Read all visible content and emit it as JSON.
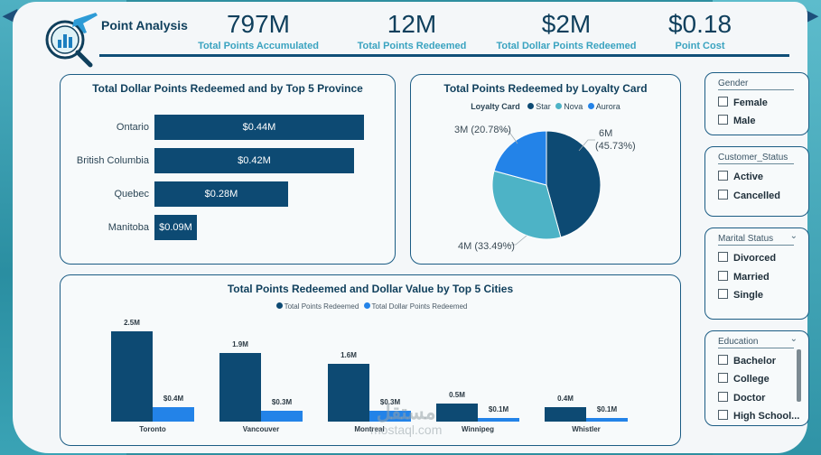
{
  "header": {
    "title": "Point Analysis",
    "kpis": [
      {
        "value": "797M",
        "label": "Total Points Accumulated"
      },
      {
        "value": "12M",
        "label": "Total Points Redeemed"
      },
      {
        "value": "$2M",
        "label": "Total Dollar Points Redeemed"
      },
      {
        "value": "$0.18",
        "label": "Point Cost"
      }
    ]
  },
  "colors": {
    "dark_navy": "#0d4a73",
    "teal": "#4db3c6",
    "bright_blue": "#2383e8",
    "kpi_label": "#3aa3c0"
  },
  "icons": {
    "logo": "airplane-chart-magnifier-icon",
    "nav_left": "arrow-left-icon",
    "nav_right": "arrow-right-icon"
  },
  "chart_data": [
    {
      "type": "bar",
      "orientation": "horizontal",
      "title": "Total Dollar Points Redeemed and by Top 5 Province",
      "categories": [
        "Ontario",
        "British Columbia",
        "Quebec",
        "Manitoba"
      ],
      "values": [
        0.44,
        0.42,
        0.28,
        0.09
      ],
      "value_labels": [
        "$0.44M",
        "$0.42M",
        "$0.28M",
        "$0.09M"
      ]
    },
    {
      "type": "pie",
      "title": "Total Points Redeemed by Loyalty Card",
      "legend_title": "Loyalty Card",
      "slices": [
        {
          "name": "Star",
          "value": 6,
          "percent": 45.73,
          "label_value": "6M",
          "label_pct": "(45.73%)",
          "color": "#0d4a73"
        },
        {
          "name": "Nova",
          "value": 4,
          "percent": 33.49,
          "label": "4M (33.49%)",
          "color": "#4db3c6"
        },
        {
          "name": "Aurora",
          "value": 3,
          "percent": 20.78,
          "label": "3M (20.78%)",
          "color": "#2383e8"
        }
      ]
    },
    {
      "type": "bar",
      "orientation": "vertical",
      "title": "Total Points Redeemed and Dollar Value by Top 5 Cities",
      "categories": [
        "Toronto",
        "Vancouver",
        "Montreal",
        "Winnipeg",
        "Whistler"
      ],
      "series": [
        {
          "name": "Total Points Redeemed",
          "values": [
            2.5,
            1.9,
            1.6,
            0.5,
            0.4
          ],
          "labels": [
            "2.5M",
            "1.9M",
            "1.6M",
            "0.5M",
            "0.4M"
          ],
          "color": "#0d4a73"
        },
        {
          "name": "Total Dollar Points Redeemed",
          "values": [
            0.4,
            0.3,
            0.3,
            0.1,
            0.1
          ],
          "labels": [
            "$0.4M",
            "$0.3M",
            "$0.3M",
            "$0.1M",
            "$0.1M"
          ],
          "color": "#2383e8"
        }
      ]
    }
  ],
  "slicers": {
    "gender": {
      "title": "Gender",
      "options": [
        "Female",
        "Male"
      ]
    },
    "customer_status": {
      "title": "Customer_Status",
      "options": [
        "Active",
        "Cancelled"
      ]
    },
    "marital_status": {
      "title": "Marital Status",
      "options": [
        "Divorced",
        "Married",
        "Single"
      ]
    },
    "education": {
      "title": "Education",
      "options": [
        "Bachelor",
        "College",
        "Doctor",
        "High School..."
      ]
    }
  },
  "watermark": {
    "arabic": "مستقل",
    "latin": "mostaql.com"
  }
}
